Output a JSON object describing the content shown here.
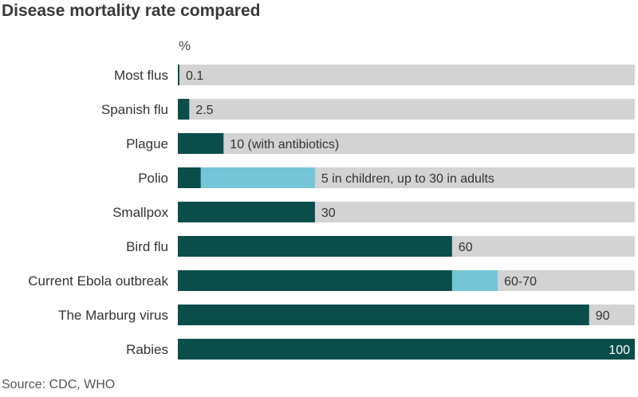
{
  "title": "Disease mortality rate compared",
  "unit_label": "%",
  "source": "Source: CDC, WHO",
  "colors": {
    "track": "#d3d3d3",
    "primary": "#0a4d4a",
    "range": "#74c6d6"
  },
  "chart_data": {
    "type": "bar",
    "orientation": "horizontal",
    "title": "Disease mortality rate compared",
    "xlabel": "%",
    "xlim": [
      0,
      100
    ],
    "categories": [
      "Most flus",
      "Spanish flu",
      "Plague",
      "Polio",
      "Smallpox",
      "Bird flu",
      "Current Ebola outbreak",
      "The Marburg virus",
      "Rabies"
    ],
    "values": [
      0.1,
      2.5,
      10,
      5,
      30,
      60,
      60,
      90,
      100
    ],
    "range_upper": [
      null,
      null,
      null,
      30,
      null,
      null,
      70,
      null,
      null
    ],
    "data_labels": [
      "0.1",
      "2.5",
      "10 (with antibiotics)",
      "5 in children, up to 30 in adults",
      "30",
      "60",
      "60-70",
      "90",
      "100"
    ],
    "grid": false,
    "legend": "none"
  }
}
